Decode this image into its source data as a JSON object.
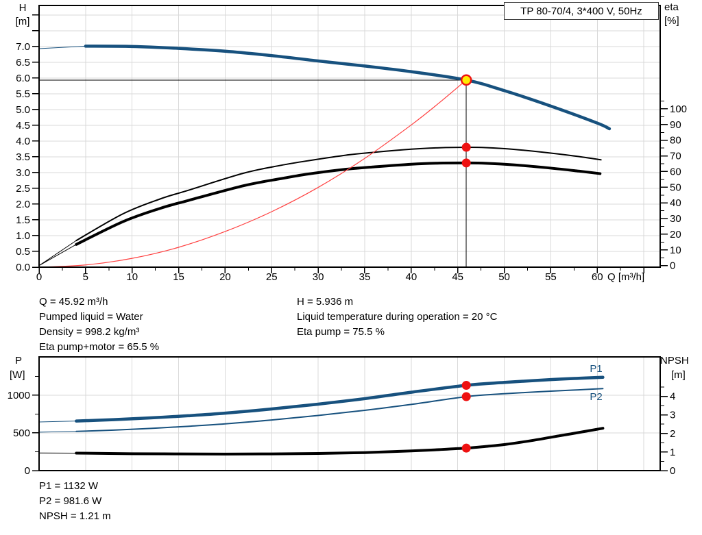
{
  "title_box": {
    "text": "TP 80-70/4, 3*400 V, 50Hz"
  },
  "axis_titles": {
    "top_left_line1": "H",
    "top_left_line2": "[m]",
    "top_right_line1": "eta",
    "top_right_line2": "[%]",
    "bottom_left_line1": "P",
    "bottom_left_line2": "[W]",
    "bottom_right_line1": "NPSH",
    "bottom_right_line2": "[m]"
  },
  "info_top_left": [
    "Q = 45.92 m³/h",
    "Pumped liquid = Water",
    "Density = 998.2 kg/m³",
    "Eta pump+motor = 65.5 %"
  ],
  "info_top_right": [
    "H = 5.936 m",
    "Liquid temperature during operation = 20 °C",
    "Eta pump = 75.5 %"
  ],
  "info_bottom": [
    "P1 = 1132 W",
    "P2 = 981.6 W",
    "NPSH = 1.21 m"
  ],
  "colors": {
    "curve_blue": "#17517E",
    "curve_black": "#000000",
    "system_red": "#FF4040",
    "marker_red": "#EE1111",
    "marker_yellow": "#FFEC00",
    "grid": "#D9D9D9",
    "frame": "#000000"
  },
  "chart_data": [
    {
      "type": "line",
      "name": "qh-eta-chart",
      "title": "TP 80-70/4, 3*400 V, 50Hz",
      "axes": {
        "x": {
          "min": 0,
          "max": 66.76,
          "label": "Q [m³/h]",
          "major_ticks": [
            0,
            5,
            10,
            15,
            20,
            25,
            30,
            35,
            40,
            45,
            50,
            55,
            60,
            65
          ],
          "tick_labels": [
            "0",
            "5",
            "10",
            "15",
            "20",
            "25",
            "30",
            "35",
            "40",
            "45",
            "50",
            "55",
            "60",
            ""
          ],
          "minor_ticks": [
            2.5,
            7.5,
            12.5,
            17.5,
            22.5,
            27.5,
            32.5,
            37.5,
            42.5,
            47.5,
            52.5,
            57.5,
            62.5
          ]
        },
        "left": {
          "min": 0,
          "max": 8.3,
          "label": "H [m]",
          "major_ticks": [
            0,
            0.5,
            1,
            1.5,
            2,
            2.5,
            3,
            3.5,
            4,
            4.5,
            5,
            5.5,
            6,
            6.5,
            7,
            7.5,
            8
          ],
          "tick_labels": [
            "0.0",
            "0.5",
            "1.0",
            "1.5",
            "2.0",
            "2.5",
            "3.0",
            "3.5",
            "4.0",
            "4.5",
            "5.0",
            "5.5",
            "6.0",
            "6.5",
            "7.0",
            "",
            ""
          ],
          "minor_ticks": []
        },
        "right": {
          "min": -1,
          "max": 166,
          "label": "eta [%]",
          "major_ticks": [
            0,
            10,
            20,
            30,
            40,
            50,
            60,
            70,
            80,
            90,
            100
          ],
          "tick_labels": [
            "0",
            "10",
            "20",
            "30",
            "40",
            "50",
            "60",
            "70",
            "80",
            "90",
            "100"
          ],
          "minor_ticks": [
            5,
            15,
            25,
            35,
            45,
            55,
            65,
            75,
            85,
            95,
            105
          ]
        }
      },
      "grid": {
        "v": [
          5,
          10,
          15,
          20,
          25,
          30,
          35,
          40,
          45,
          50,
          55,
          60,
          65
        ],
        "h": [
          0.5,
          1,
          1.5,
          2,
          2.5,
          3,
          3.5,
          4,
          4.5,
          5,
          5.5,
          6,
          6.5,
          7,
          7.5,
          8
        ]
      },
      "series": [
        {
          "name": "qh-curve",
          "color": "#17517E",
          "width": 4.5,
          "axis": "left",
          "thick_from": 5,
          "x": [
            0,
            5,
            10,
            15,
            20,
            25,
            30,
            35,
            40,
            45.92,
            50,
            55,
            60,
            61.3
          ],
          "y": [
            6.93,
            7.01,
            7.0,
            6.94,
            6.85,
            6.71,
            6.54,
            6.38,
            6.2,
            5.936,
            5.6,
            5.11,
            4.57,
            4.39
          ]
        },
        {
          "name": "eta-pump-curve",
          "color": "#000000",
          "width": 2,
          "axis": "right",
          "thick_from": 4,
          "x": [
            0,
            4,
            9,
            13,
            16,
            22,
            26,
            29,
            33,
            36,
            40,
            43,
            46,
            48,
            51,
            55,
            58,
            60.4
          ],
          "y": [
            0,
            16,
            33,
            42.5,
            48,
            59,
            64,
            67,
            70.5,
            72.3,
            74.3,
            75.2,
            75.5,
            75.3,
            74.2,
            71.8,
            69.6,
            67.5
          ]
        },
        {
          "name": "eta-pump-motor-curve",
          "color": "#000000",
          "width": 4,
          "axis": "right",
          "thick_from": 4,
          "x": [
            0,
            4,
            9,
            13,
            16,
            22,
            26,
            29,
            33,
            36,
            40,
            43,
            46,
            48,
            51,
            55,
            58,
            60.3
          ],
          "y": [
            0,
            13.5,
            28,
            36.5,
            41.5,
            51,
            55.5,
            58.5,
            61.5,
            63,
            64.7,
            65.4,
            65.5,
            65.3,
            64.3,
            62.2,
            60.3,
            58.7
          ]
        },
        {
          "name": "system-curve",
          "color": "#FF4040",
          "width": 1.2,
          "axis": "left",
          "x": [
            0,
            5,
            10,
            15,
            20,
            25,
            30,
            35,
            40,
            43,
            45.92
          ],
          "y": [
            0,
            0.07,
            0.28,
            0.63,
            1.13,
            1.76,
            2.53,
            3.45,
            4.51,
            5.21,
            5.936
          ]
        }
      ],
      "ref_lines": [
        {
          "dir": "h",
          "at": 5.936,
          "axis": "left",
          "from": 0,
          "to": 45.92
        },
        {
          "dir": "v",
          "at": 45.92,
          "axis": "left",
          "from": 0,
          "to": 5.936
        }
      ],
      "markers": [
        {
          "x": 45.92,
          "y": 5.936,
          "axis": "left",
          "style": "duty-point"
        },
        {
          "x": 45.92,
          "y": 75.5,
          "axis": "right",
          "style": "dot"
        },
        {
          "x": 45.92,
          "y": 65.5,
          "axis": "right",
          "style": "dot"
        }
      ]
    },
    {
      "type": "line",
      "name": "power-npsh-chart",
      "title": "",
      "axes": {
        "x": {
          "min": 0,
          "max": 66.76,
          "label": "",
          "major_ticks": [],
          "tick_labels": [],
          "minor_ticks": []
        },
        "left": {
          "min": 0,
          "max": 1509,
          "label": "P [W]",
          "major_ticks": [
            0,
            500,
            1000
          ],
          "tick_labels": [
            "0",
            "500",
            "1000"
          ],
          "minor_ticks": [
            250,
            750,
            1250
          ]
        },
        "right": {
          "min": 0,
          "max": 6.12,
          "label": "NPSH [m]",
          "major_ticks": [
            0,
            1,
            2,
            3,
            4
          ],
          "tick_labels": [
            "0",
            "1",
            "2",
            "3",
            "4"
          ],
          "minor_ticks": [
            0.5,
            1.5,
            2.5,
            3.5,
            4.5
          ]
        }
      },
      "grid": {
        "v": [
          5,
          10,
          15,
          20,
          25,
          30,
          35,
          40,
          45,
          50,
          55,
          60,
          65
        ],
        "h": [
          500,
          1000
        ]
      },
      "series": [
        {
          "name": "p1-curve",
          "color": "#17517E",
          "width": 4.5,
          "axis": "left",
          "thick_from": 4,
          "label": {
            "text": "P1",
            "x": 59.2,
            "y": 1310
          },
          "x": [
            0,
            4,
            8,
            12,
            16,
            20,
            25,
            30,
            35,
            40,
            45.92,
            50,
            55,
            58,
            60.6
          ],
          "y": [
            645,
            658,
            676,
            700,
            728,
            762,
            818,
            882,
            955,
            1040,
            1132,
            1170,
            1208,
            1225,
            1238
          ]
        },
        {
          "name": "p2-curve",
          "color": "#17517E",
          "width": 2,
          "axis": "left",
          "thick_from": 4,
          "label": {
            "text": "P2",
            "x": 59.2,
            "y": 936
          },
          "x": [
            0,
            4,
            8,
            12,
            16,
            20,
            25,
            30,
            35,
            40,
            45.92,
            50,
            55,
            58,
            60.6
          ],
          "y": [
            510,
            520,
            538,
            560,
            588,
            620,
            672,
            732,
            800,
            878,
            981.6,
            1020,
            1055,
            1072,
            1088
          ]
        },
        {
          "name": "npsh-curve",
          "color": "#000000",
          "width": 4,
          "axis": "right",
          "thick_from": 4,
          "x": [
            0,
            4,
            10,
            15,
            20,
            25,
            30,
            35,
            40,
            43,
            45.92,
            48,
            50,
            53,
            56,
            58,
            60.6
          ],
          "y": [
            0.95,
            0.94,
            0.91,
            0.9,
            0.89,
            0.9,
            0.92,
            0.97,
            1.06,
            1.13,
            1.21,
            1.3,
            1.4,
            1.62,
            1.88,
            2.05,
            2.28
          ]
        }
      ],
      "ref_lines": [],
      "markers": [
        {
          "x": 45.92,
          "y": 1132,
          "axis": "left",
          "style": "dot"
        },
        {
          "x": 45.92,
          "y": 981.6,
          "axis": "left",
          "style": "dot"
        },
        {
          "x": 45.92,
          "y": 1.21,
          "axis": "right",
          "style": "dot"
        }
      ]
    }
  ]
}
